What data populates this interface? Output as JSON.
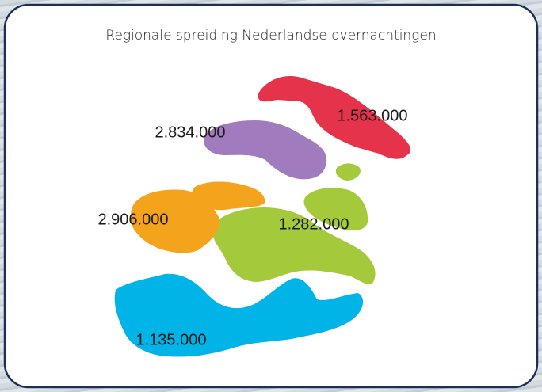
{
  "map": {
    "title": "Regionale spreiding Nederlandse overnachtingen",
    "regions": [
      {
        "label": "1.563.000",
        "color": "#e5334b"
      },
      {
        "label": "2.834.000",
        "color": "#a07bbd"
      },
      {
        "label": "1.282.000",
        "color": "#a4c93b"
      },
      {
        "label": "2.906.000",
        "color": "#f4a31d"
      },
      {
        "label": "1.135.000",
        "color": "#00b4e8"
      }
    ]
  }
}
